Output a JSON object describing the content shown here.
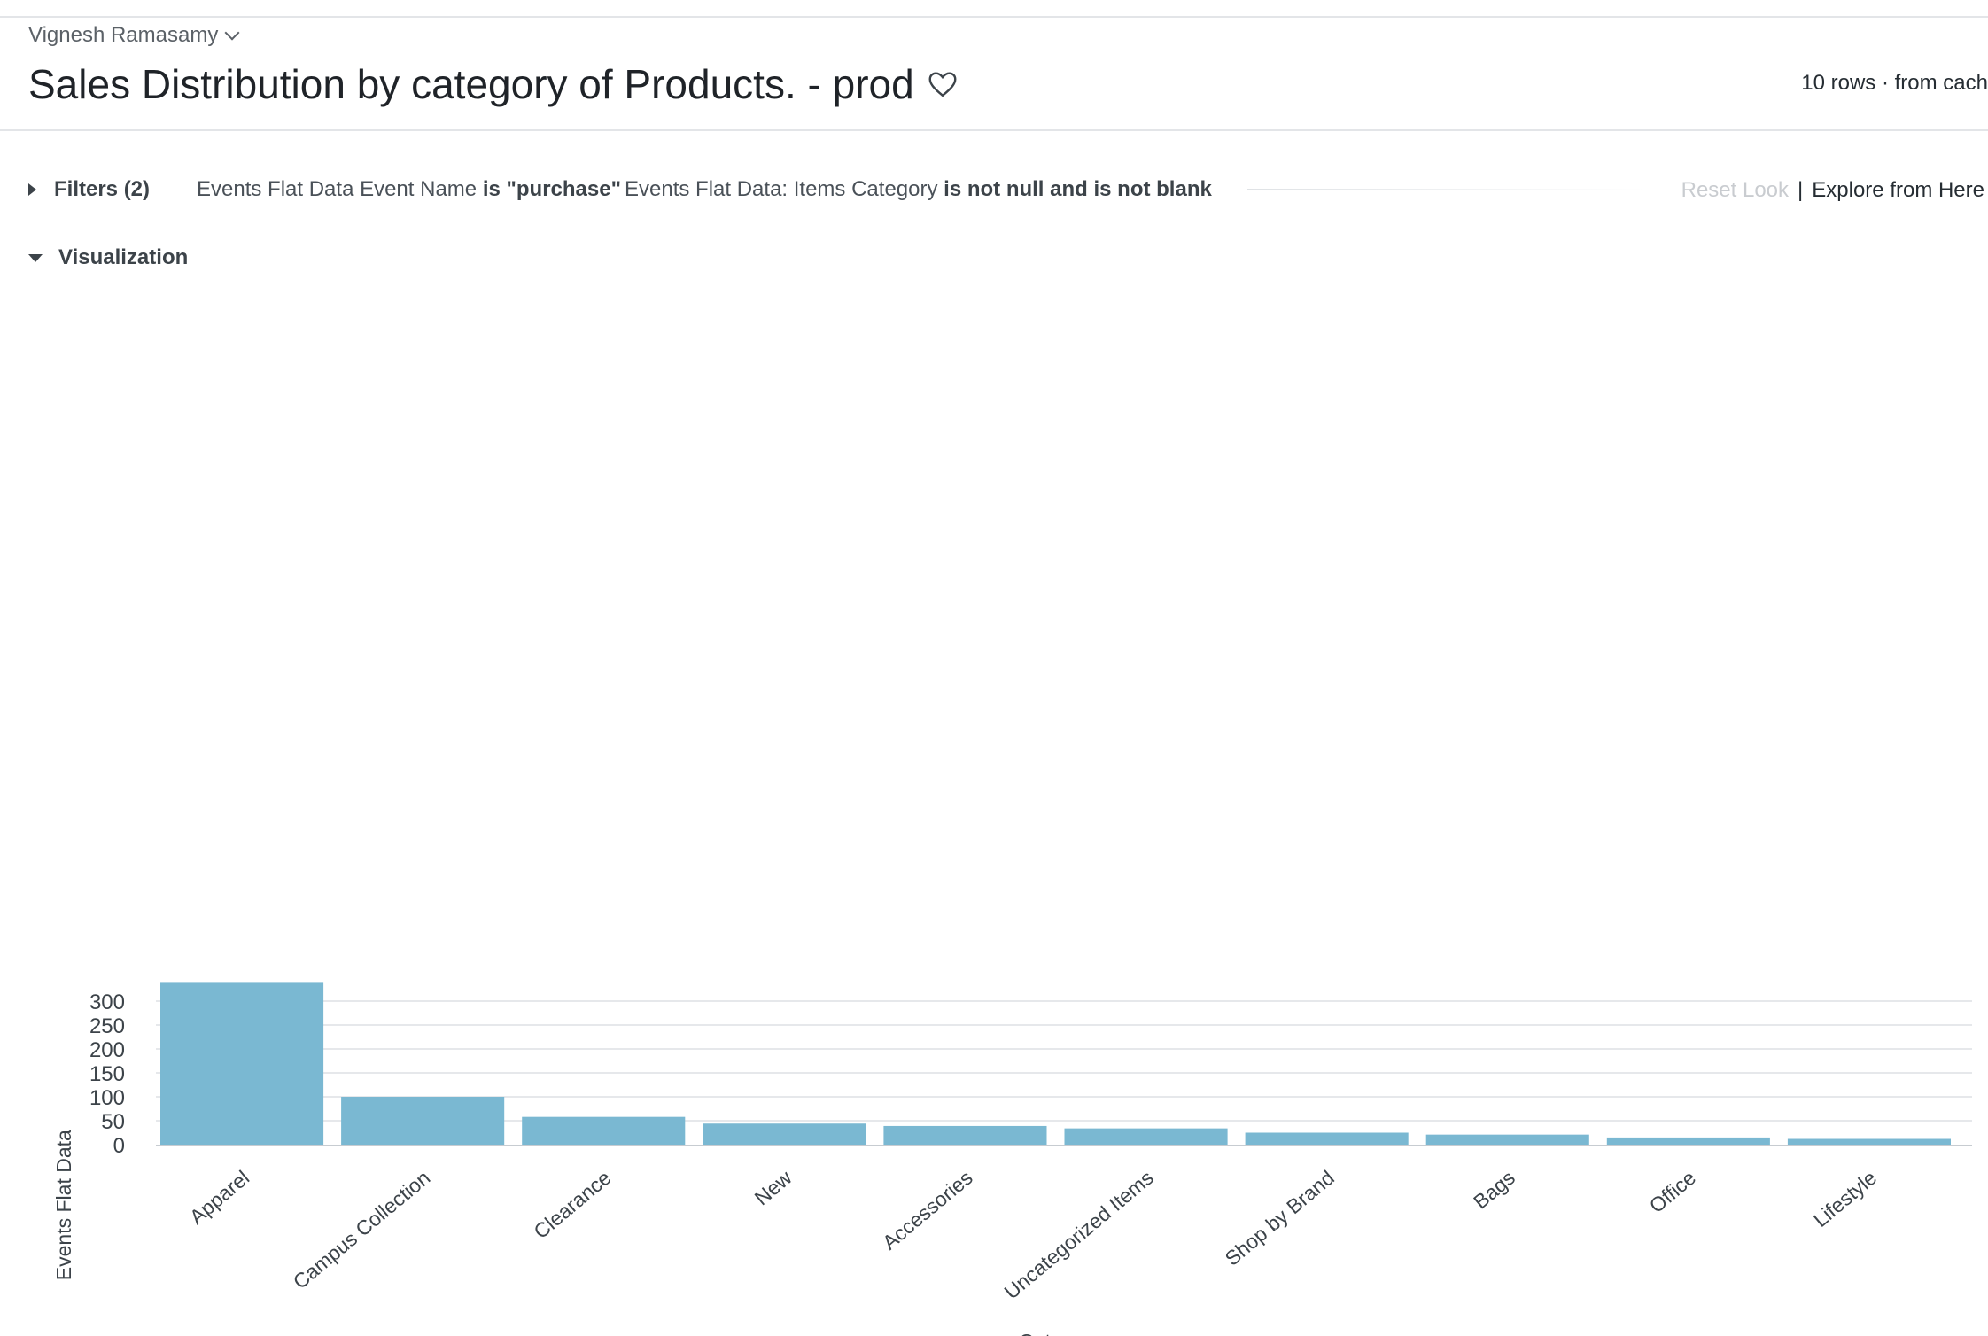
{
  "header": {
    "owner": "Vignesh Ramasamy",
    "title": "Sales Distribution by category of Products. - prod",
    "rows_info": "10 rows · from cach"
  },
  "filters": {
    "toggle_label": "Filters (2)",
    "items": [
      {
        "field": "Events Flat Data Event Name",
        "condition": "is \"purchase\""
      },
      {
        "field": "Events Flat Data: Items Category",
        "condition": "is not null and is not blank"
      }
    ]
  },
  "actions": {
    "reset_look": "Reset Look",
    "separator": "|",
    "explore": "Explore from Here"
  },
  "visualization": {
    "toggle_label": "Visualization"
  },
  "colors": {
    "bar": "#7ab8d2",
    "grid": "#e6e8eb",
    "axis_text": "#3c4349"
  },
  "chart_data": {
    "type": "bar",
    "categories": [
      "Apparel",
      "Campus Collection",
      "Clearance",
      "New",
      "Accessories",
      "Uncategorized Items",
      "Shop by Brand",
      "Bags",
      "Office",
      "Lifestyle"
    ],
    "values": [
      340,
      100,
      58,
      44,
      39,
      34,
      25,
      21,
      15,
      12
    ],
    "ylabel": "Events Flat Data",
    "xlabel": "Cat",
    "yticks": [
      0,
      50,
      100,
      150,
      200,
      250,
      300
    ],
    "ylim": [
      0,
      340
    ],
    "grid": true
  }
}
